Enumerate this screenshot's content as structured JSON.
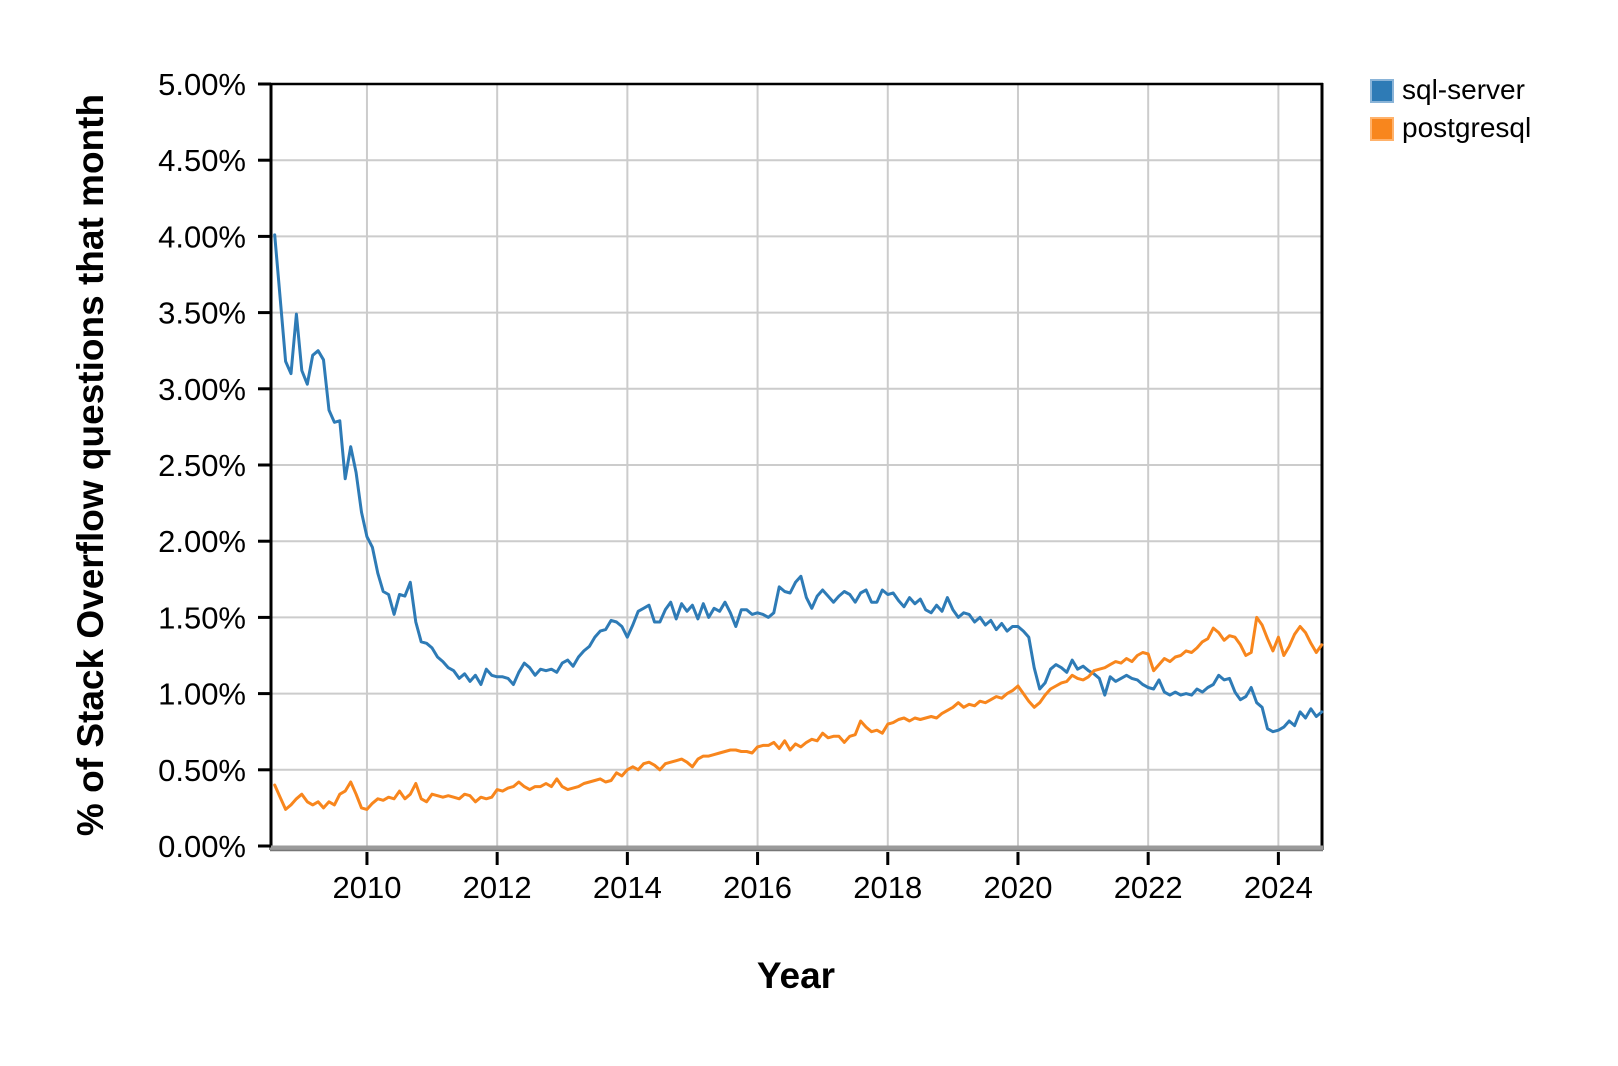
{
  "figure": {
    "background": "#ffffff",
    "grid_color": "#cccccc",
    "spine_color": "#000000",
    "bottom_spine_color": "#9a9a9a",
    "tick_color": "#000000"
  },
  "legend": {
    "position": "top-right-outside",
    "entries": [
      {
        "label": "sql-server",
        "color": "#2e7bb6",
        "border": "#8ab4d8"
      },
      {
        "label": "postgresql",
        "color": "#f8861d",
        "border": "#ffb26b"
      }
    ]
  },
  "chart_data": {
    "type": "line",
    "title": "",
    "xlabel": "Year",
    "ylabel": "% of Stack Overflow questions that month",
    "grid": true,
    "legend_position": "top-right-outside",
    "xlim": [
      2008.526,
      2024.67
    ],
    "ylim": [
      0,
      5
    ],
    "x_cadence": "monthly",
    "x_start_decimal_year": 2008.583,
    "x_ticks": [
      {
        "value": 2010,
        "label": "2010"
      },
      {
        "value": 2012,
        "label": "2012"
      },
      {
        "value": 2014,
        "label": "2014"
      },
      {
        "value": 2016,
        "label": "2016"
      },
      {
        "value": 2018,
        "label": "2018"
      },
      {
        "value": 2020,
        "label": "2020"
      },
      {
        "value": 2022,
        "label": "2022"
      },
      {
        "value": 2024,
        "label": "2024"
      }
    ],
    "y_ticks": [
      {
        "value": 0.0,
        "label": "0.00%"
      },
      {
        "value": 0.5,
        "label": "0.50%"
      },
      {
        "value": 1.0,
        "label": "1.00%"
      },
      {
        "value": 1.5,
        "label": "1.50%"
      },
      {
        "value": 2.0,
        "label": "2.00%"
      },
      {
        "value": 2.5,
        "label": "2.50%"
      },
      {
        "value": 3.0,
        "label": "3.00%"
      },
      {
        "value": 3.5,
        "label": "3.50%"
      },
      {
        "value": 4.0,
        "label": "4.00%"
      },
      {
        "value": 4.5,
        "label": "4.50%"
      },
      {
        "value": 5.0,
        "label": "5.00%"
      }
    ],
    "series": [
      {
        "name": "sql-server",
        "color": "#2e7bb6",
        "start": "2008-08",
        "values": [
          4.01,
          3.6,
          3.18,
          3.1,
          3.49,
          3.12,
          3.03,
          3.22,
          3.25,
          3.19,
          2.86,
          2.78,
          2.79,
          2.41,
          2.62,
          2.45,
          2.19,
          2.03,
          1.96,
          1.79,
          1.67,
          1.65,
          1.52,
          1.65,
          1.64,
          1.73,
          1.47,
          1.34,
          1.33,
          1.3,
          1.24,
          1.21,
          1.17,
          1.15,
          1.1,
          1.13,
          1.08,
          1.12,
          1.06,
          1.16,
          1.12,
          1.11,
          1.11,
          1.1,
          1.06,
          1.14,
          1.2,
          1.17,
          1.12,
          1.16,
          1.15,
          1.16,
          1.14,
          1.2,
          1.22,
          1.18,
          1.24,
          1.28,
          1.31,
          1.37,
          1.41,
          1.42,
          1.48,
          1.47,
          1.44,
          1.37,
          1.45,
          1.54,
          1.56,
          1.58,
          1.47,
          1.47,
          1.55,
          1.6,
          1.49,
          1.59,
          1.54,
          1.58,
          1.49,
          1.59,
          1.5,
          1.56,
          1.54,
          1.6,
          1.53,
          1.44,
          1.55,
          1.55,
          1.52,
          1.53,
          1.52,
          1.5,
          1.53,
          1.7,
          1.67,
          1.66,
          1.73,
          1.77,
          1.63,
          1.56,
          1.64,
          1.68,
          1.64,
          1.6,
          1.64,
          1.67,
          1.65,
          1.6,
          1.66,
          1.68,
          1.6,
          1.6,
          1.68,
          1.65,
          1.66,
          1.61,
          1.57,
          1.63,
          1.59,
          1.62,
          1.55,
          1.53,
          1.58,
          1.54,
          1.63,
          1.55,
          1.5,
          1.53,
          1.52,
          1.47,
          1.5,
          1.45,
          1.48,
          1.42,
          1.46,
          1.41,
          1.44,
          1.44,
          1.41,
          1.37,
          1.17,
          1.03,
          1.07,
          1.16,
          1.19,
          1.17,
          1.14,
          1.22,
          1.16,
          1.18,
          1.15,
          1.13,
          1.1,
          0.99,
          1.11,
          1.08,
          1.1,
          1.12,
          1.1,
          1.09,
          1.06,
          1.04,
          1.03,
          1.09,
          1.01,
          0.99,
          1.01,
          0.99,
          1.0,
          0.99,
          1.03,
          1.01,
          1.04,
          1.06,
          1.12,
          1.09,
          1.1,
          1.01,
          0.96,
          0.98,
          1.04,
          0.94,
          0.91,
          0.77,
          0.75,
          0.76,
          0.78,
          0.82,
          0.79,
          0.88,
          0.84,
          0.9,
          0.85,
          0.88
        ]
      },
      {
        "name": "postgresql",
        "color": "#f8861d",
        "start": "2008-08",
        "values": [
          0.4,
          0.32,
          0.24,
          0.27,
          0.31,
          0.34,
          0.29,
          0.27,
          0.29,
          0.25,
          0.29,
          0.27,
          0.34,
          0.36,
          0.42,
          0.34,
          0.25,
          0.24,
          0.28,
          0.31,
          0.3,
          0.32,
          0.31,
          0.36,
          0.31,
          0.34,
          0.41,
          0.31,
          0.29,
          0.34,
          0.33,
          0.32,
          0.33,
          0.32,
          0.31,
          0.34,
          0.33,
          0.29,
          0.32,
          0.31,
          0.32,
          0.37,
          0.36,
          0.38,
          0.39,
          0.42,
          0.39,
          0.37,
          0.39,
          0.39,
          0.41,
          0.39,
          0.44,
          0.39,
          0.37,
          0.38,
          0.39,
          0.41,
          0.42,
          0.43,
          0.44,
          0.42,
          0.43,
          0.48,
          0.46,
          0.5,
          0.52,
          0.5,
          0.54,
          0.55,
          0.53,
          0.5,
          0.54,
          0.55,
          0.56,
          0.57,
          0.55,
          0.52,
          0.57,
          0.59,
          0.59,
          0.6,
          0.61,
          0.62,
          0.63,
          0.63,
          0.62,
          0.62,
          0.61,
          0.65,
          0.66,
          0.66,
          0.68,
          0.64,
          0.69,
          0.63,
          0.67,
          0.65,
          0.68,
          0.7,
          0.69,
          0.74,
          0.71,
          0.72,
          0.72,
          0.68,
          0.72,
          0.73,
          0.82,
          0.78,
          0.75,
          0.76,
          0.74,
          0.8,
          0.81,
          0.83,
          0.84,
          0.82,
          0.84,
          0.83,
          0.84,
          0.85,
          0.84,
          0.87,
          0.89,
          0.91,
          0.94,
          0.91,
          0.93,
          0.92,
          0.95,
          0.94,
          0.96,
          0.98,
          0.97,
          1.0,
          1.02,
          1.05,
          1.0,
          0.95,
          0.91,
          0.94,
          0.99,
          1.03,
          1.05,
          1.07,
          1.08,
          1.12,
          1.1,
          1.09,
          1.11,
          1.15,
          1.16,
          1.17,
          1.19,
          1.21,
          1.2,
          1.23,
          1.21,
          1.25,
          1.27,
          1.26,
          1.15,
          1.19,
          1.23,
          1.21,
          1.24,
          1.25,
          1.28,
          1.27,
          1.3,
          1.34,
          1.36,
          1.43,
          1.4,
          1.35,
          1.38,
          1.37,
          1.32,
          1.25,
          1.27,
          1.5,
          1.45,
          1.36,
          1.28,
          1.37,
          1.25,
          1.31,
          1.39,
          1.44,
          1.4,
          1.33,
          1.27,
          1.32
        ]
      }
    ]
  }
}
